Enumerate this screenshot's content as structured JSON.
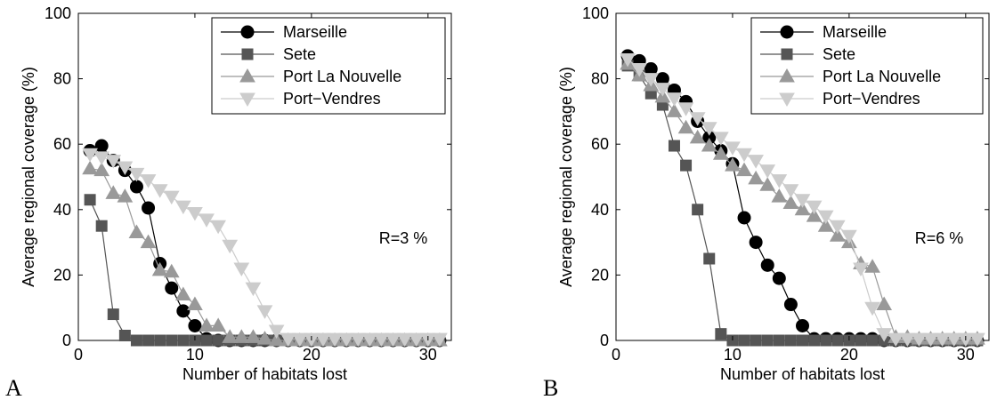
{
  "chart_data": [
    {
      "type": "line",
      "panel_label": "A",
      "annotation": "R=3 %",
      "xlabel": "Number of habitats lost",
      "ylabel": "Average regional coverage (%)",
      "xlim": [
        0,
        32
      ],
      "ylim": [
        0,
        100
      ],
      "xticks": [
        0,
        10,
        20,
        30
      ],
      "yticks": [
        0,
        20,
        40,
        60,
        80,
        100
      ],
      "grid": false,
      "legend_position": "top-right",
      "series": [
        {
          "name": "Marseille",
          "marker": "circle",
          "color": "#000000",
          "marker_color": "#000000",
          "x": [
            1,
            2,
            3,
            4,
            5,
            6,
            7,
            8,
            9,
            10,
            11,
            12,
            13,
            14,
            15,
            16,
            17,
            18,
            19,
            20,
            21,
            22,
            23,
            24,
            25,
            26,
            27,
            28,
            29,
            30,
            31
          ],
          "values": [
            58,
            59.5,
            55,
            52,
            47,
            40.5,
            23.5,
            16,
            9,
            4.5,
            0.5,
            0,
            0,
            0,
            0,
            0,
            0,
            0,
            0,
            0,
            0,
            0,
            0,
            0,
            0,
            0,
            0,
            0,
            0,
            0,
            0
          ]
        },
        {
          "name": "Sete",
          "marker": "square",
          "color": "#555555",
          "marker_color": "#555555",
          "x": [
            1,
            2,
            3,
            4,
            5,
            6,
            7,
            8,
            9,
            10,
            11,
            12,
            13,
            14,
            15,
            16,
            17,
            18,
            19,
            20,
            21,
            22,
            23,
            24,
            25,
            26,
            27,
            28,
            29,
            30,
            31
          ],
          "values": [
            43,
            35,
            8,
            1.5,
            0,
            0,
            0,
            0,
            0,
            0,
            0,
            0,
            0,
            0,
            0,
            0,
            0,
            0,
            0,
            0,
            0,
            0,
            0,
            0,
            0,
            0,
            0,
            0,
            0,
            0,
            0
          ]
        },
        {
          "name": "Port La Nouvelle",
          "marker": "triangle-up",
          "color": "#999999",
          "marker_color": "#999999",
          "x": [
            1,
            2,
            3,
            4,
            5,
            6,
            7,
            8,
            9,
            10,
            11,
            12,
            13,
            14,
            15,
            16,
            17,
            18,
            19,
            20,
            21,
            22,
            23,
            24,
            25,
            26,
            27,
            28,
            29,
            30,
            31
          ],
          "values": [
            52.5,
            52,
            45,
            44,
            33,
            30,
            21.5,
            21,
            14,
            11,
            4.5,
            4.5,
            1,
            1,
            1,
            0.5,
            0,
            0,
            0,
            0,
            0,
            0,
            0,
            0,
            0,
            0,
            0,
            0,
            0,
            0,
            0
          ]
        },
        {
          "name": "Port−Vendres",
          "marker": "triangle-down",
          "color": "#cccccc",
          "marker_color": "#cccccc",
          "x": [
            1,
            2,
            3,
            4,
            5,
            6,
            7,
            8,
            9,
            10,
            11,
            12,
            13,
            14,
            15,
            16,
            17,
            18,
            19,
            20,
            21,
            22,
            23,
            24,
            25,
            26,
            27,
            28,
            29,
            30,
            31
          ],
          "values": [
            57,
            56,
            55,
            53,
            51,
            49,
            46,
            44,
            41,
            39,
            37,
            35,
            29,
            22,
            16,
            9,
            3,
            0.5,
            0.5,
            0.5,
            0.5,
            0.5,
            0.5,
            0.5,
            0.5,
            0.5,
            0.5,
            0.5,
            0.5,
            0.5,
            0.5
          ]
        }
      ]
    },
    {
      "type": "line",
      "panel_label": "B",
      "annotation": "R=6 %",
      "xlabel": "Number of habitats lost",
      "ylabel": "Average regional coverage (%)",
      "xlim": [
        0,
        32
      ],
      "ylim": [
        0,
        100
      ],
      "xticks": [
        0,
        10,
        20,
        30
      ],
      "yticks": [
        0,
        20,
        40,
        60,
        80,
        100
      ],
      "grid": false,
      "legend_position": "top-right",
      "series": [
        {
          "name": "Marseille",
          "marker": "circle",
          "color": "#000000",
          "marker_color": "#000000",
          "x": [
            1,
            2,
            3,
            4,
            5,
            6,
            7,
            8,
            9,
            10,
            11,
            12,
            13,
            14,
            15,
            16,
            17,
            18,
            19,
            20,
            21,
            22,
            23,
            24,
            25,
            26,
            27,
            28,
            29,
            30,
            31
          ],
          "values": [
            87,
            85.5,
            83,
            80,
            76.5,
            73,
            67,
            62,
            58,
            54,
            37.5,
            30,
            23,
            19,
            11,
            4.5,
            0.5,
            0.5,
            0.5,
            0.5,
            0.5,
            0.5,
            0,
            0,
            0,
            0,
            0,
            0,
            0,
            0,
            0
          ]
        },
        {
          "name": "Sete",
          "marker": "square",
          "color": "#555555",
          "marker_color": "#555555",
          "x": [
            1,
            2,
            3,
            4,
            5,
            6,
            7,
            8,
            9,
            10,
            11,
            12,
            13,
            14,
            15,
            16,
            17,
            18,
            19,
            20,
            21,
            22,
            23,
            24,
            25,
            26,
            27,
            28,
            29,
            30,
            31
          ],
          "values": [
            84,
            81,
            75.5,
            72,
            59.5,
            53.5,
            40,
            25,
            2,
            0,
            0,
            0,
            0,
            0,
            0,
            0,
            0,
            0,
            0,
            0,
            0,
            0,
            0,
            0,
            0,
            0,
            0,
            0,
            0,
            0,
            0
          ]
        },
        {
          "name": "Port La Nouvelle",
          "marker": "triangle-up",
          "color": "#999999",
          "marker_color": "#999999",
          "x": [
            1,
            2,
            3,
            4,
            5,
            6,
            7,
            8,
            9,
            10,
            11,
            12,
            13,
            14,
            15,
            16,
            17,
            18,
            19,
            20,
            21,
            22,
            23,
            24,
            25,
            26,
            27,
            28,
            29,
            30,
            31
          ],
          "values": [
            84.5,
            81,
            78,
            74.5,
            70,
            65,
            62,
            59.5,
            57,
            53.5,
            52,
            49.5,
            47.5,
            44,
            42,
            40,
            38,
            35,
            32,
            30,
            23.5,
            22.5,
            11,
            1,
            1,
            0.5,
            0.5,
            0.5,
            0.5,
            0.5,
            0.5
          ]
        },
        {
          "name": "Port−Vendres",
          "marker": "triangle-down",
          "color": "#cccccc",
          "marker_color": "#cccccc",
          "x": [
            1,
            2,
            3,
            4,
            5,
            6,
            7,
            8,
            9,
            10,
            11,
            12,
            13,
            14,
            15,
            16,
            17,
            18,
            19,
            20,
            21,
            22,
            23,
            24,
            25,
            26,
            27,
            28,
            29,
            30,
            31
          ],
          "values": [
            86,
            83,
            80,
            77,
            74,
            71,
            68,
            65,
            62,
            59,
            57,
            55,
            52,
            49,
            46,
            43,
            41,
            38,
            35,
            32,
            22,
            10,
            2,
            0.5,
            0.5,
            0.5,
            0.5,
            0.5,
            0.5,
            0.5,
            0.5
          ]
        }
      ]
    }
  ]
}
